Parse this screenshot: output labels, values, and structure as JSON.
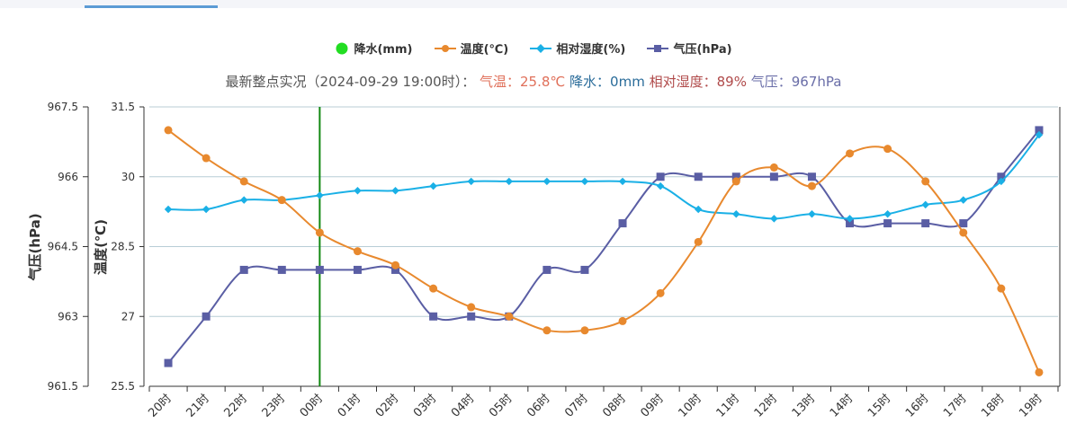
{
  "status": {
    "prefix": "最新整点实况（2024-09-29 19:00时）：",
    "temp_label": "气温：",
    "temp_value": "25.8℃",
    "rain_label": "降水：",
    "rain_value": "0mm",
    "humidity_label": "相对湿度：",
    "humidity_value": "89%",
    "pressure_label": "气压：",
    "pressure_value": "967hPa"
  },
  "colors": {
    "rain": "#22dd22",
    "temperature": "#e8892e",
    "humidity": "#1ab0e6",
    "pressure": "#5a5ea4",
    "current_hour_line": "#118811",
    "gridline": "#b8cdd6",
    "axis": "#333333"
  },
  "chart_data": {
    "type": "line",
    "categories": [
      "20时",
      "21时",
      "22时",
      "23时",
      "00时",
      "01时",
      "02时",
      "03时",
      "04时",
      "05时",
      "06时",
      "07时",
      "08时",
      "09时",
      "10时",
      "11时",
      "12时",
      "13时",
      "14时",
      "15时",
      "16时",
      "17时",
      "18时",
      "19时"
    ],
    "series": [
      {
        "name": "降水(mm)",
        "values": [
          0,
          0,
          0,
          0,
          0,
          0,
          0,
          0,
          0,
          0,
          0,
          0,
          0,
          0,
          0,
          0,
          0,
          0,
          0,
          0,
          0,
          0,
          0,
          0
        ]
      },
      {
        "name": "温度(℃)",
        "axis": "temperature",
        "values": [
          31.0,
          30.4,
          29.9,
          29.5,
          28.8,
          28.4,
          28.1,
          27.6,
          27.2,
          27.0,
          26.7,
          26.7,
          26.9,
          27.5,
          28.6,
          29.9,
          30.2,
          29.8,
          30.5,
          30.6,
          29.9,
          28.8,
          27.6,
          25.8
        ]
      },
      {
        "name": "相对湿度(%)",
        "axis": "temperature",
        "values": [
          29.3,
          29.3,
          29.5,
          29.5,
          29.6,
          29.7,
          29.7,
          29.8,
          29.9,
          29.9,
          29.9,
          29.9,
          29.9,
          29.8,
          29.3,
          29.2,
          29.1,
          29.2,
          29.1,
          29.2,
          29.4,
          29.5,
          29.9,
          30.9
        ]
      },
      {
        "name": "气压(hPa)",
        "axis": "pressure",
        "values": [
          962,
          963,
          964,
          964,
          964,
          964,
          964,
          963,
          963,
          963,
          964,
          964,
          965,
          966,
          966,
          966,
          966,
          966,
          965,
          965,
          965,
          965,
          966,
          967
        ]
      }
    ],
    "y_left_outer": {
      "label": "气压(hPa)",
      "ticks": [
        "967.5",
        "966",
        "964.5",
        "963",
        "961.5"
      ],
      "range": [
        961.5,
        967.5
      ]
    },
    "y_left_inner": {
      "label": "温度(℃)",
      "ticks": [
        "31.5",
        "30",
        "28.5",
        "27",
        "25.5"
      ],
      "range": [
        25.5,
        31.5
      ]
    },
    "current_hour_marker": "00时",
    "grid": true,
    "legend_position": "top-center"
  }
}
